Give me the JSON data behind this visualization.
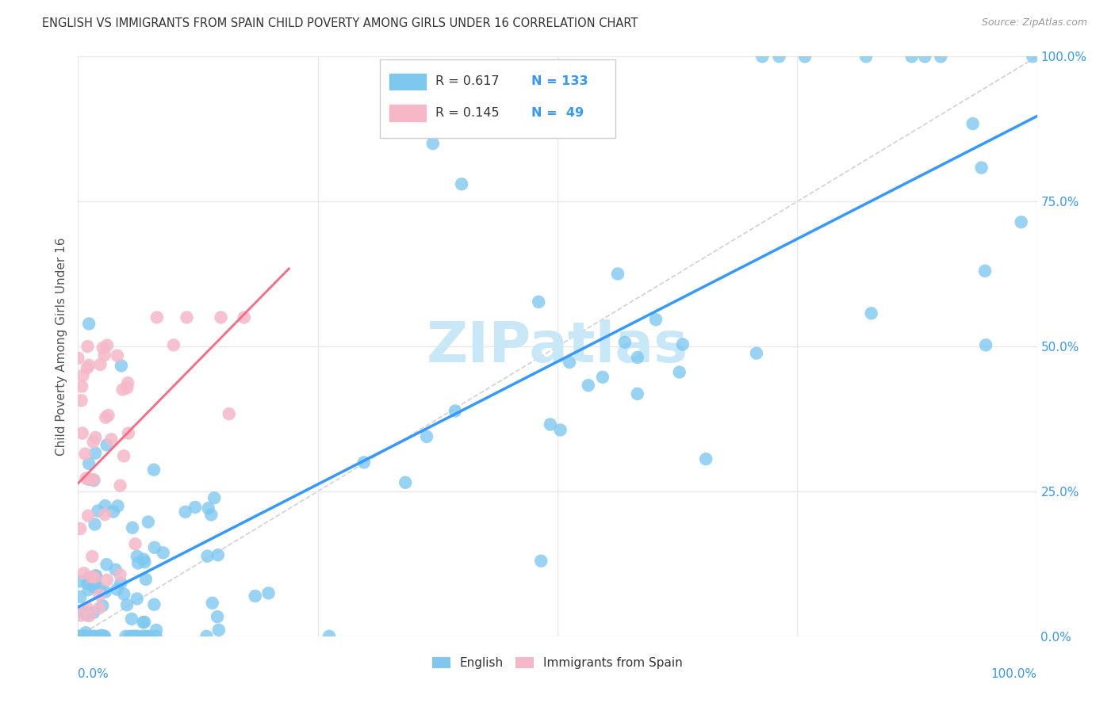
{
  "title": "ENGLISH VS IMMIGRANTS FROM SPAIN CHILD POVERTY AMONG GIRLS UNDER 16 CORRELATION CHART",
  "source": "Source: ZipAtlas.com",
  "ylabel": "Child Poverty Among Girls Under 16",
  "ytick_labels": [
    "0.0%",
    "25.0%",
    "50.0%",
    "75.0%",
    "100.0%"
  ],
  "ytick_values": [
    0.0,
    0.25,
    0.5,
    0.75,
    1.0
  ],
  "watermark": "ZIPatlas",
  "english_R": 0.617,
  "english_N": 133,
  "spain_R": 0.145,
  "spain_N": 49,
  "english_color": "#7EC8F0",
  "spain_color": "#F5B8C8",
  "english_line_color": "#3399FF",
  "spain_line_color": "#FF6680",
  "identity_line_color": "#CCCCCC",
  "background_color": "#FFFFFF",
  "grid_color": "#E8E8E8",
  "title_color": "#333333",
  "source_color": "#999999",
  "label_color": "#555555",
  "tick_color": "#3399FF",
  "watermark_color": "#C8E8F8",
  "legend_text_dark": "#333333",
  "legend_text_blue": "#3399FF"
}
